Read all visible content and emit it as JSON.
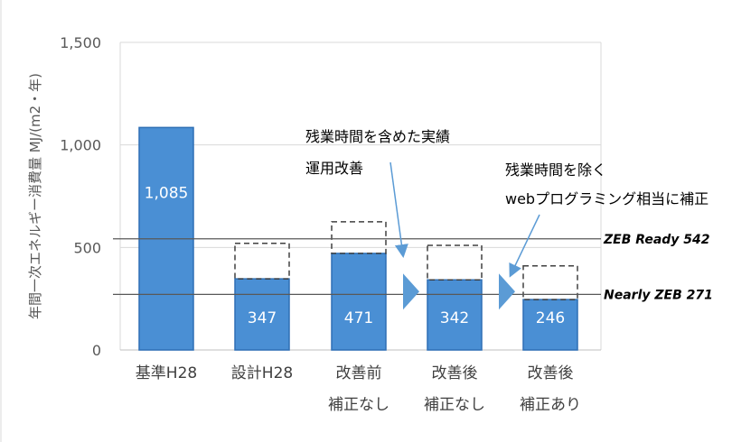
{
  "chart_data": {
    "type": "bar",
    "ylabel": "年間一次エネルギー消費量 MJ/(m2・年)",
    "ylim": [
      0,
      1500
    ],
    "yticks": [
      "0",
      "500",
      "1,000",
      "1,500"
    ],
    "ytick_values": [
      0,
      500,
      1000,
      1500
    ],
    "grid": true,
    "categories": [
      {
        "line1": "基準H28",
        "line2": ""
      },
      {
        "line1": "設計H28",
        "line2": ""
      },
      {
        "line1": "改善前",
        "line2": "補正なし"
      },
      {
        "line1": "改善後",
        "line2": "補正なし"
      },
      {
        "line1": "改善後",
        "line2": "補正あり"
      }
    ],
    "values": [
      1085,
      347,
      471,
      342,
      246
    ],
    "value_labels": [
      "1,085",
      "347",
      "471",
      "342",
      "246"
    ],
    "dashed_extension_top": [
      null,
      520,
      625,
      510,
      410
    ],
    "reference_lines": [
      {
        "label": "ZEB Ready 542",
        "value": 542
      },
      {
        "label": "Nearly ZEB 271",
        "value": 271
      }
    ],
    "annotations": [
      {
        "lines": [
          "残業時間を含めた実績",
          "運用改善"
        ]
      },
      {
        "lines": [
          "残業時間を除く",
          "webプログラミング相当に補正"
        ]
      }
    ],
    "colors": {
      "bar": "#4a8fd4",
      "bar_edge": "#2e6fb5",
      "dashed": "#404040",
      "arrow": "#5b9bd5",
      "grid": "#d9d9d9",
      "refline": "#595959"
    }
  }
}
